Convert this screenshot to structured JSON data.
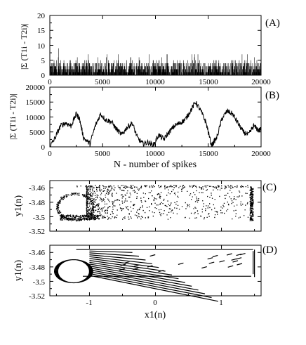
{
  "chart_data": [
    {
      "id": "A",
      "panel_label": "(A)",
      "type": "bar",
      "ylabel": "|Σ (T1i - T2i)|",
      "xlabel": "",
      "xlim": [
        0,
        20000
      ],
      "ylim": [
        0,
        20
      ],
      "xticks": [
        "0",
        "5000",
        "10000",
        "15000",
        "20000"
      ],
      "yticks": [
        "0",
        "5",
        "10",
        "15",
        "20"
      ],
      "description_values": {
        "typical_max": 5,
        "peak": 9
      }
    },
    {
      "id": "B",
      "panel_label": "(B)",
      "type": "line",
      "ylabel": "|Σ (T1i - T2i)|",
      "xlabel": "N - number of spikes",
      "xlim": [
        0,
        20000
      ],
      "ylim": [
        0,
        20000
      ],
      "xticks": [
        "0",
        "5000",
        "10000",
        "15000",
        "20000"
      ],
      "yticks": [
        "0",
        "5000",
        "10000",
        "15000",
        "20000"
      ],
      "x": [
        0,
        500,
        1000,
        1500,
        2000,
        2500,
        2800,
        3200,
        3800,
        4300,
        4800,
        5300,
        5800,
        6300,
        6800,
        7300,
        7800,
        8300,
        8800,
        9300,
        9800,
        10300,
        10800,
        11300,
        11800,
        12300,
        12800,
        13300,
        13800,
        14300,
        14800,
        15300,
        15800,
        16300,
        16800,
        17300,
        17800,
        18300,
        18800,
        19300,
        19800,
        20000
      ],
      "values": [
        0,
        3000,
        7000,
        8000,
        7000,
        11000,
        9500,
        3000,
        1000,
        7000,
        11000,
        9000,
        8500,
        6000,
        4000,
        6500,
        8000,
        3000,
        1000,
        1500,
        500,
        4000,
        2500,
        5000,
        7000,
        8000,
        9000,
        12000,
        15000,
        12000,
        8000,
        500,
        3000,
        9500,
        12000,
        11000,
        8000,
        5000,
        4000,
        7000,
        5500,
        6000
      ]
    },
    {
      "id": "C",
      "panel_label": "(C)",
      "type": "scatter",
      "ylabel": "y1(n)",
      "xlabel": "",
      "xlim": [
        -1.6,
        1.6
      ],
      "ylim": [
        -3.52,
        -3.45
      ],
      "yticks": [
        "-3.46",
        "-3.48",
        "-3.5",
        "-3.52"
      ],
      "attractor_bounds": {
        "x": [
          -1.5,
          1.5
        ],
        "y": [
          -3.505,
          -3.455
        ]
      }
    },
    {
      "id": "D",
      "panel_label": "(D)",
      "type": "scatter",
      "ylabel": "y1(n)",
      "xlabel": "x1(n)",
      "xlim": [
        -1.6,
        1.6
      ],
      "ylim": [
        -3.52,
        -3.45
      ],
      "xticks": [
        "-1",
        "0",
        "1"
      ],
      "yticks": [
        "-3.46",
        "-3.48",
        "-3.5",
        "-3.52"
      ],
      "attractor_bounds": {
        "x": [
          -1.5,
          1.5
        ],
        "y": [
          -3.495,
          -3.455
        ]
      }
    }
  ]
}
